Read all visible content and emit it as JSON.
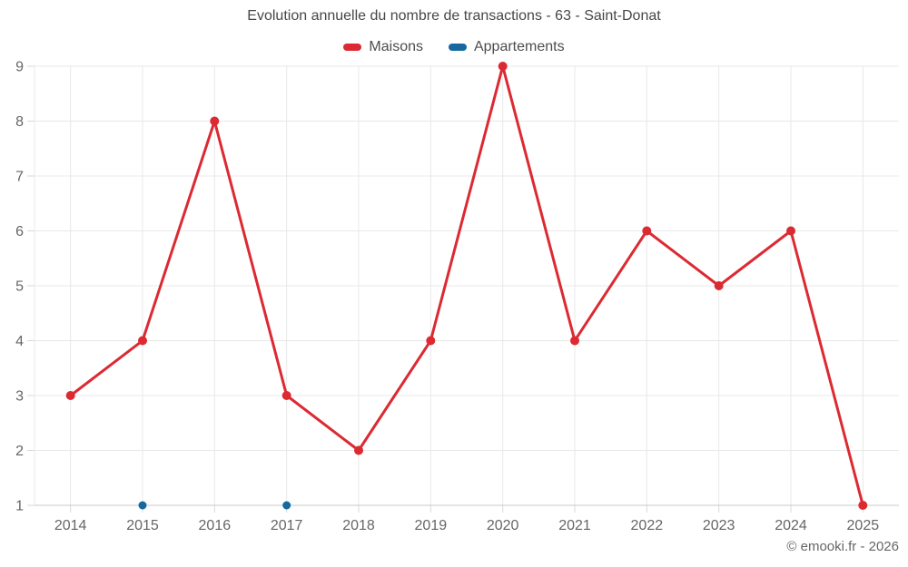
{
  "title": "Evolution annuelle du nombre de transactions - 63 - Saint-Donat",
  "legend": {
    "items": [
      {
        "label": "Maisons",
        "color": "#dc2a32"
      },
      {
        "label": "Appartements",
        "color": "#17689e"
      }
    ]
  },
  "copyright": "© emooki.fr - 2026",
  "colors": {
    "maisons": "#dc2a32",
    "appartements": "#17689e",
    "grid": "#e8e8e8",
    "axis_line": "#c9c9c9",
    "tick": "#d9d9d9",
    "title_text": "#474747",
    "axis_text": "#666666"
  },
  "chart_data": {
    "type": "line",
    "title": "Evolution annuelle du nombre de transactions - 63 - Saint-Donat",
    "categories": [
      "2014",
      "2015",
      "2016",
      "2017",
      "2018",
      "2019",
      "2020",
      "2021",
      "2022",
      "2023",
      "2024",
      "2025"
    ],
    "series": [
      {
        "name": "Maisons",
        "color": "#dc2a32",
        "marker_radius": 5,
        "line_width": 3,
        "values": [
          3,
          4,
          8,
          3,
          2,
          4,
          9,
          4,
          6,
          5,
          6,
          1
        ]
      },
      {
        "name": "Appartements",
        "color": "#17689e",
        "marker_radius": 4.5,
        "line_width": 3,
        "values": [
          null,
          1,
          null,
          1,
          null,
          null,
          null,
          null,
          null,
          null,
          null,
          null
        ]
      }
    ],
    "xlabel": "",
    "ylabel": "",
    "ylim": [
      1,
      9
    ],
    "yticks": [
      1,
      2,
      3,
      4,
      5,
      6,
      7,
      8,
      9
    ],
    "grid": true,
    "legend_position": "top"
  }
}
